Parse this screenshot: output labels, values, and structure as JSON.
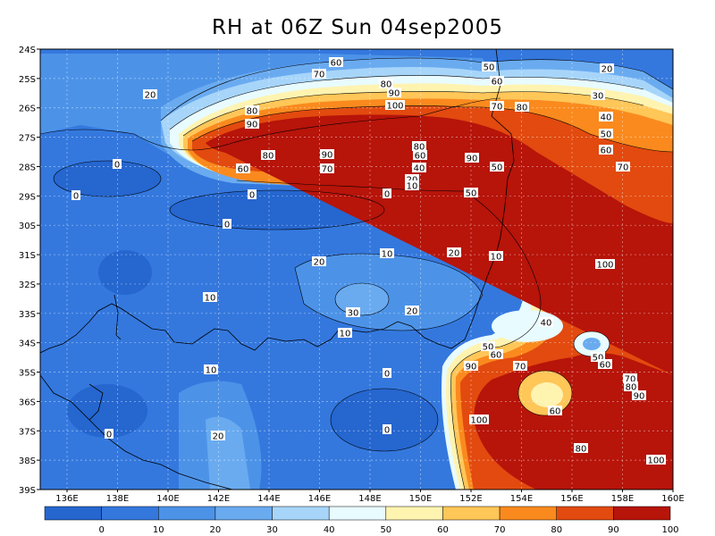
{
  "title": "RH at 06Z Sun 04sep2005",
  "lat_labels": [
    "24S",
    "25S",
    "26S",
    "27S",
    "28S",
    "29S",
    "30S",
    "31S",
    "32S",
    "33S",
    "34S",
    "35S",
    "36S",
    "37S",
    "38S",
    "39S"
  ],
  "lon_labels": [
    "136E",
    "138E",
    "140E",
    "142E",
    "144E",
    "146E",
    "148E",
    "150E",
    "152E",
    "154E",
    "156E",
    "158E",
    "160E"
  ],
  "colorbar": {
    "ticks": [
      "0",
      "10",
      "20",
      "30",
      "40",
      "50",
      "60",
      "70",
      "80",
      "90",
      "100"
    ],
    "colors": [
      "#2566cf",
      "#3478de",
      "#4c93e8",
      "#6aabf0",
      "#a7d5fa",
      "#e8fbff",
      "#fff3b0",
      "#ffc658",
      "#fa8a1e",
      "#e24a0f",
      "#b7140a"
    ]
  },
  "contour_labels": [
    {
      "t": "60"
    },
    {
      "t": "50"
    },
    {
      "t": "20"
    },
    {
      "t": "70"
    },
    {
      "t": "60"
    },
    {
      "t": "20"
    },
    {
      "t": "80"
    },
    {
      "t": "90"
    },
    {
      "t": "100"
    },
    {
      "t": "70"
    },
    {
      "t": "80"
    },
    {
      "t": "30"
    },
    {
      "t": "80"
    },
    {
      "t": "90"
    },
    {
      "t": "40"
    },
    {
      "t": "50"
    },
    {
      "t": "60"
    },
    {
      "t": "70"
    },
    {
      "t": "0"
    },
    {
      "t": "80"
    },
    {
      "t": "90"
    },
    {
      "t": "90"
    },
    {
      "t": "80"
    },
    {
      "t": "60"
    },
    {
      "t": "70"
    },
    {
      "t": "60"
    },
    {
      "t": "40"
    },
    {
      "t": "50"
    },
    {
      "t": "20"
    },
    {
      "t": "10"
    },
    {
      "t": "0"
    },
    {
      "t": "0"
    },
    {
      "t": "50"
    },
    {
      "t": "0"
    },
    {
      "t": "0"
    },
    {
      "t": "10"
    },
    {
      "t": "20"
    },
    {
      "t": "20"
    },
    {
      "t": "10"
    },
    {
      "t": "100"
    },
    {
      "t": "10"
    },
    {
      "t": "30"
    },
    {
      "t": "20"
    },
    {
      "t": "40"
    },
    {
      "t": "10"
    },
    {
      "t": "50"
    },
    {
      "t": "60"
    },
    {
      "t": "90"
    },
    {
      "t": "70"
    },
    {
      "t": "10"
    },
    {
      "t": "0"
    },
    {
      "t": "50"
    },
    {
      "t": "60"
    },
    {
      "t": "70"
    },
    {
      "t": "80"
    },
    {
      "t": "90"
    },
    {
      "t": "60"
    },
    {
      "t": "100"
    },
    {
      "t": "0"
    },
    {
      "t": "20"
    },
    {
      "t": "80"
    },
    {
      "t": "100"
    },
    {
      "t": "0"
    }
  ]
}
